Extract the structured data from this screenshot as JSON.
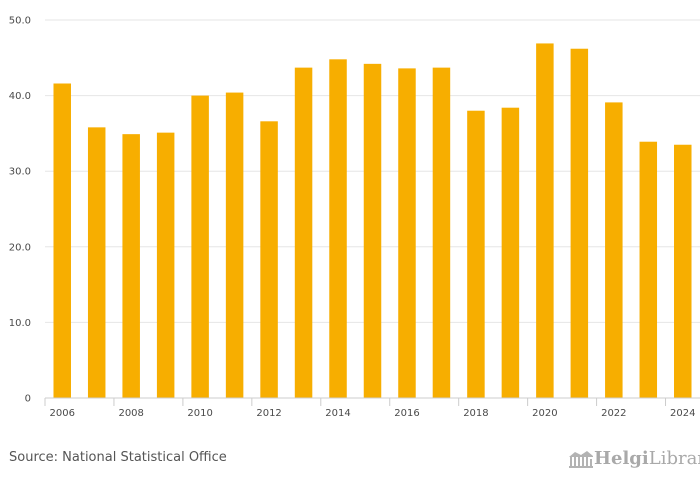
{
  "chart_data": {
    "type": "bar",
    "categories": [
      "2006",
      "2007",
      "2008",
      "2009",
      "2010",
      "2011",
      "2012",
      "2013",
      "2014",
      "2015",
      "2016",
      "2017",
      "2018",
      "2019",
      "2020",
      "2021",
      "2022",
      "2023",
      "2024"
    ],
    "values": [
      41.6,
      35.8,
      34.9,
      35.1,
      40.0,
      40.4,
      36.6,
      43.7,
      44.8,
      44.2,
      43.6,
      43.7,
      38.0,
      38.4,
      46.9,
      46.2,
      39.1,
      33.9,
      33.5
    ],
    "x_tick_labels": [
      "2006",
      "2008",
      "2010",
      "2012",
      "2014",
      "2016",
      "2018",
      "2020",
      "2022",
      "2024"
    ],
    "y_tick_labels": [
      "0",
      "10.0",
      "20.0",
      "30.0",
      "40.0",
      "50.0"
    ],
    "y_ticks": [
      0,
      10,
      20,
      30,
      40,
      50
    ],
    "ylim": [
      0,
      50
    ],
    "title": "",
    "xlabel": "",
    "ylabel": "",
    "grid": true,
    "bar_color": "#f7ae00",
    "grid_color": "#e6e6e6"
  },
  "footer": {
    "source": "Source: National Statistical Office",
    "logo_part1": "Helgi",
    "logo_part2": "Library."
  }
}
